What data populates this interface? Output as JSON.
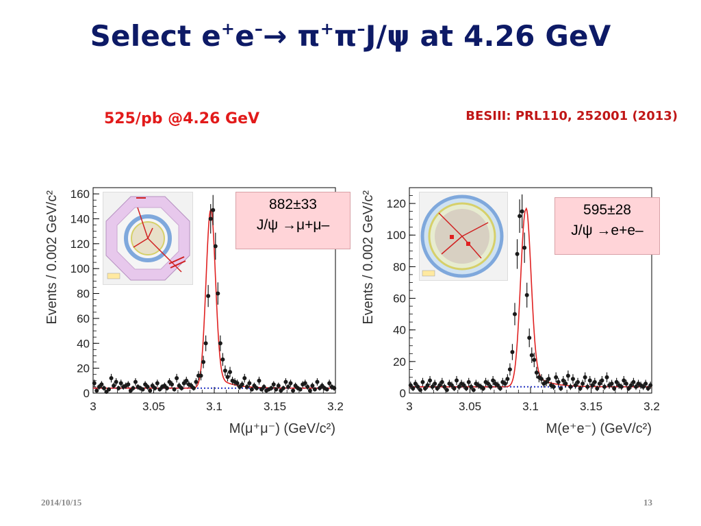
{
  "slide": {
    "title_parts": {
      "a": "Select e",
      "a_sup": "+",
      "b": "e",
      "b_sup": "–",
      "arrow": "→",
      "c": " π",
      "c_sup": "+",
      "d": "π",
      "d_sup": "–",
      "e": "J/ψ at 4.26 GeV"
    },
    "subtitle_left": "525/pb @4.26 GeV",
    "subtitle_right": "BESIII: PRL110, 252001 (2013)",
    "footer_date": "2014/10/15",
    "footer_page": "13"
  },
  "colors": {
    "title": "#0d1a66",
    "subtitle": "#e21a1a",
    "fit_curve": "#e02020",
    "background_line": "#1f2fc0",
    "data_points": "#1a1a1a",
    "result_box": "#ffd4d8"
  },
  "panels": {
    "mumu": {
      "result_count": "882±33",
      "result_decay": "J/ψ →μ+μ–",
      "detector_inset": "event-display-octagon"
    },
    "ee": {
      "result_count": "595±28",
      "result_decay": "J/ψ →e+e–",
      "detector_inset": "event-display-round"
    }
  },
  "chart_data": [
    {
      "type": "scatter",
      "ylabel": "Events / 0.002 GeV/c²",
      "xlabel": "M(μ⁺μ⁻) (GeV/c²)",
      "xlim": [
        3.0,
        3.2
      ],
      "ylim": [
        0,
        165
      ],
      "xticks": [
        "3",
        "3.05",
        "3.1",
        "3.15",
        "3.2"
      ],
      "yticks": [
        "0",
        "20",
        "40",
        "60",
        "80",
        "100",
        "120",
        "140",
        "160"
      ],
      "ytick_values": [
        0,
        20,
        40,
        60,
        80,
        100,
        120,
        140,
        160
      ],
      "xtick_values": [
        3.0,
        3.05,
        3.1,
        3.15,
        3.2
      ],
      "grid": false,
      "background_level": 4,
      "series": [
        {
          "x": [
            3.001,
            3.003,
            3.005,
            3.007,
            3.009,
            3.011,
            3.013,
            3.015,
            3.017,
            3.019,
            3.021,
            3.023,
            3.025,
            3.027,
            3.029,
            3.031,
            3.033,
            3.035,
            3.037,
            3.039,
            3.041,
            3.043,
            3.045,
            3.047,
            3.049,
            3.051,
            3.053,
            3.055,
            3.057,
            3.059,
            3.061,
            3.063,
            3.065,
            3.067,
            3.069,
            3.071,
            3.073,
            3.075,
            3.077,
            3.079,
            3.081,
            3.083,
            3.085,
            3.087,
            3.089,
            3.091,
            3.093,
            3.095,
            3.097,
            3.099,
            3.101,
            3.103,
            3.105,
            3.107,
            3.109,
            3.111,
            3.113,
            3.115,
            3.117,
            3.119,
            3.121,
            3.123,
            3.125,
            3.127,
            3.129,
            3.131,
            3.133,
            3.135,
            3.137,
            3.139,
            3.141,
            3.143,
            3.145,
            3.147,
            3.149,
            3.151,
            3.153,
            3.155,
            3.157,
            3.159,
            3.161,
            3.163,
            3.165,
            3.167,
            3.169,
            3.171,
            3.173,
            3.175,
            3.177,
            3.179,
            3.181,
            3.183,
            3.185,
            3.187,
            3.189,
            3.191,
            3.193,
            3.195,
            3.197,
            3.199
          ],
          "y": [
            8,
            2,
            5,
            7,
            4,
            1,
            3,
            12,
            6,
            9,
            4,
            8,
            5,
            6,
            7,
            2,
            4,
            9,
            5,
            4,
            3,
            7,
            5,
            2,
            6,
            4,
            8,
            3,
            5,
            6,
            4,
            9,
            7,
            3,
            12,
            6,
            4,
            8,
            10,
            7,
            6,
            4,
            9,
            14,
            14,
            25,
            40,
            78,
            140,
            147,
            118,
            80,
            40,
            27,
            18,
            13,
            17,
            10,
            9,
            8,
            5,
            7,
            12,
            5,
            8,
            3,
            6,
            4,
            10,
            3,
            5,
            2,
            3,
            4,
            7,
            3,
            6,
            2,
            4,
            9,
            5,
            8,
            2,
            6,
            4,
            3,
            7,
            8,
            5,
            2,
            6,
            3,
            9,
            4,
            6,
            4,
            3,
            8,
            5,
            4
          ]
        }
      ],
      "fit": {
        "mean": 3.097,
        "sigma": 0.0038,
        "peak": 143
      }
    },
    {
      "type": "scatter",
      "ylabel": "Events / 0.002 GeV/c²",
      "xlabel": "M(e⁺e⁻) (GeV/c²)",
      "xlim": [
        3.0,
        3.2
      ],
      "ylim": [
        0,
        130
      ],
      "xticks": [
        "3",
        "3.05",
        "3.1",
        "3.15",
        "3.2"
      ],
      "yticks": [
        "0",
        "20",
        "40",
        "60",
        "80",
        "100",
        "120"
      ],
      "ytick_values": [
        0,
        20,
        40,
        60,
        80,
        100,
        120
      ],
      "xtick_values": [
        3.0,
        3.05,
        3.1,
        3.15,
        3.2
      ],
      "grid": false,
      "background_level": 4,
      "series": [
        {
          "x": [
            3.001,
            3.003,
            3.005,
            3.007,
            3.009,
            3.011,
            3.013,
            3.015,
            3.017,
            3.019,
            3.021,
            3.023,
            3.025,
            3.027,
            3.029,
            3.031,
            3.033,
            3.035,
            3.037,
            3.039,
            3.041,
            3.043,
            3.045,
            3.047,
            3.049,
            3.051,
            3.053,
            3.055,
            3.057,
            3.059,
            3.061,
            3.063,
            3.065,
            3.067,
            3.069,
            3.071,
            3.073,
            3.075,
            3.077,
            3.079,
            3.081,
            3.083,
            3.085,
            3.087,
            3.089,
            3.091,
            3.093,
            3.095,
            3.097,
            3.099,
            3.101,
            3.103,
            3.105,
            3.107,
            3.109,
            3.111,
            3.113,
            3.115,
            3.117,
            3.119,
            3.121,
            3.123,
            3.125,
            3.127,
            3.129,
            3.131,
            3.133,
            3.135,
            3.137,
            3.139,
            3.141,
            3.143,
            3.145,
            3.147,
            3.149,
            3.151,
            3.153,
            3.155,
            3.157,
            3.159,
            3.161,
            3.163,
            3.165,
            3.167,
            3.169,
            3.171,
            3.173,
            3.175,
            3.177,
            3.179,
            3.181,
            3.183,
            3.185,
            3.187,
            3.189,
            3.191,
            3.193,
            3.195,
            3.197,
            3.199
          ],
          "y": [
            5,
            3,
            6,
            4,
            2,
            7,
            3,
            5,
            8,
            4,
            6,
            3,
            5,
            7,
            4,
            2,
            6,
            5,
            3,
            8,
            4,
            6,
            5,
            3,
            7,
            4,
            2,
            6,
            5,
            4,
            3,
            7,
            6,
            4,
            8,
            6,
            5,
            3,
            7,
            6,
            9,
            15,
            26,
            50,
            88,
            112,
            115,
            92,
            62,
            35,
            24,
            21,
            13,
            10,
            9,
            6,
            7,
            9,
            5,
            4,
            10,
            7,
            3,
            8,
            6,
            11,
            4,
            9,
            5,
            7,
            3,
            6,
            10,
            4,
            8,
            5,
            7,
            3,
            6,
            8,
            4,
            10,
            5,
            6,
            3,
            7,
            5,
            4,
            8,
            6,
            3,
            5,
            7,
            4,
            6,
            5,
            4,
            6,
            3,
            5
          ]
        }
      ],
      "fit": {
        "mean": 3.096,
        "sigma": 0.0042,
        "peak": 112
      }
    }
  ]
}
